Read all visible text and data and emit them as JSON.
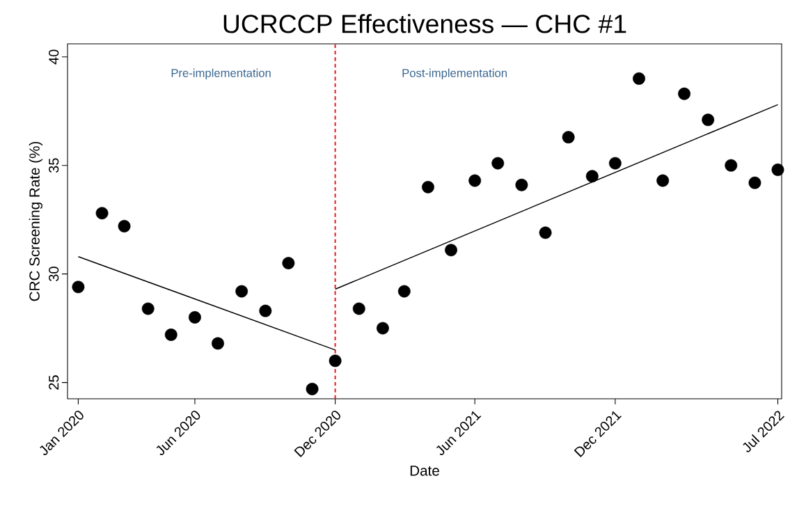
{
  "chart_data": {
    "type": "scatter",
    "title": "UCRCCP Effectiveness — CHC #1",
    "xlabel": "Date",
    "ylabel": "CRC Screening Rate (%)",
    "x": [
      "2020-01",
      "2020-02",
      "2020-03",
      "2020-04",
      "2020-05",
      "2020-06",
      "2020-07",
      "2020-08",
      "2020-09",
      "2020-10",
      "2020-11",
      "2020-12",
      "2021-01",
      "2021-02",
      "2021-03",
      "2021-04",
      "2021-05",
      "2021-06",
      "2021-07",
      "2021-08",
      "2021-09",
      "2021-10",
      "2021-11",
      "2021-12",
      "2022-01",
      "2022-02",
      "2022-03",
      "2022-04",
      "2022-05",
      "2022-06",
      "2022-07"
    ],
    "series": [
      {
        "color": "#000000",
        "values": [
          29.4,
          32.8,
          32.2,
          28.4,
          27.2,
          28.0,
          26.8,
          29.2,
          28.3,
          30.5,
          24.7,
          26.0,
          28.4,
          27.5,
          29.2,
          34.0,
          31.1,
          34.3,
          35.1,
          34.1,
          31.9,
          36.3,
          34.5,
          35.1,
          39.0,
          34.3,
          38.3,
          37.1,
          35.0,
          34.2,
          34.8
        ]
      },
      {
        "type": "line",
        "color": "#000000",
        "marker": "none",
        "x": [
          "2020-01",
          "2020-12"
        ],
        "values": [
          30.8,
          26.5
        ]
      },
      {
        "type": "line",
        "color": "#000000",
        "marker": "none",
        "x": [
          "2020-12",
          "2022-07"
        ],
        "values": [
          29.3,
          37.8
        ]
      }
    ],
    "marker": "circle",
    "xlim": [
      "2019-12-18",
      "2022-07-06"
    ],
    "xticks": [
      {
        "value": "2020-01",
        "label": "Jan 2020"
      },
      {
        "value": "2020-06",
        "label": "Jun 2020"
      },
      {
        "value": "2020-12",
        "label": "Dec 2020"
      },
      {
        "value": "2021-06",
        "label": "Jun 2021"
      },
      {
        "value": "2021-12",
        "label": "Dec 2021"
      },
      {
        "value": "2022-07",
        "label": "Jul 2022"
      }
    ],
    "ylim": [
      24.25,
      40.6
    ],
    "yticks": [
      25,
      30,
      35,
      40
    ],
    "ref_lines": [
      {
        "axis": "x",
        "value": "2020-12",
        "color": "#e8262a",
        "line_style": "dashed"
      }
    ],
    "annotations": [
      "Pre-implementation",
      "Post-implementation"
    ]
  }
}
